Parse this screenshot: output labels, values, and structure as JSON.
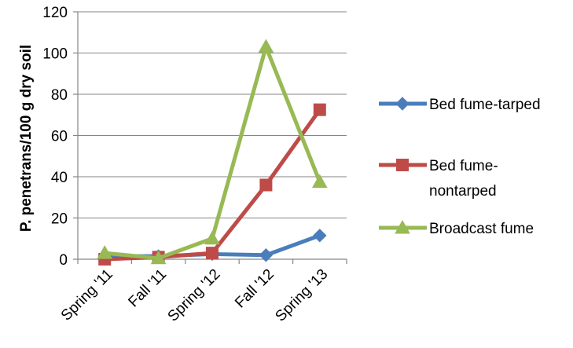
{
  "chart_data": {
    "type": "line",
    "title": "",
    "xlabel": "",
    "ylabel": "P. penetrans/100 g dry soil",
    "categories": [
      "Spring '11",
      "Fall '11",
      "Spring '12",
      "Fall '12",
      "Spring '13"
    ],
    "ylim": [
      0,
      120
    ],
    "yticks": [
      0,
      20,
      40,
      60,
      80,
      100,
      120
    ],
    "grid": true,
    "legend_position": "right",
    "series": [
      {
        "name": "Bed fume-tarped",
        "name_lines": [
          "Bed fume-tarped"
        ],
        "color": "#4a7ebb",
        "marker": "diamond",
        "values": [
          1.5,
          1.5,
          2.5,
          2,
          11.5
        ]
      },
      {
        "name": "Bed fume-nontarped",
        "name_lines": [
          "Bed fume-",
          "nontarped"
        ],
        "color": "#be4b48",
        "marker": "square",
        "values": [
          0,
          1,
          3,
          36,
          72.5
        ]
      },
      {
        "name": "Broadcast fume",
        "name_lines": [
          "Broadcast fume"
        ],
        "color": "#98b954",
        "marker": "triangle",
        "values": [
          3,
          0.5,
          10,
          103,
          37.5
        ]
      }
    ]
  }
}
